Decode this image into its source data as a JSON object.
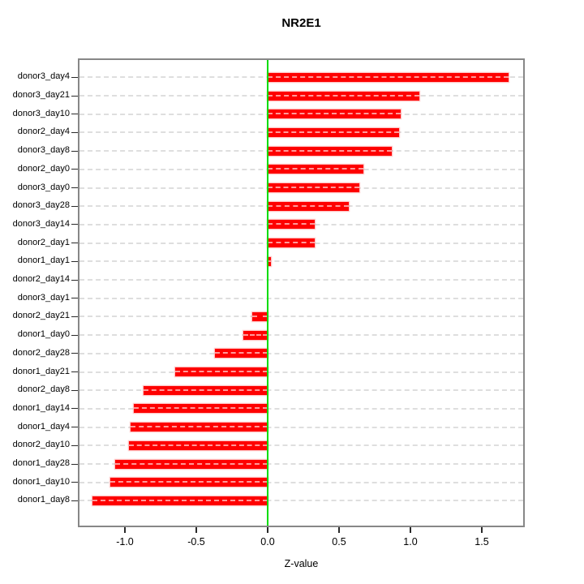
{
  "title": "NR2E1",
  "xlabel": "Z-value",
  "chart_data": {
    "type": "bar",
    "orientation": "horizontal",
    "title": "NR2E1",
    "xlabel": "Z-value",
    "ylabel": "",
    "xlim": [
      -1.32,
      1.79
    ],
    "xticks": [
      -1.0,
      -0.5,
      0.0,
      0.5,
      1.0,
      1.5
    ],
    "grid": "horizontal-dashed-per-category",
    "legend": "none",
    "bar_color": "#fe0000",
    "zero_line_color": "#00dd00",
    "frame_color": "#878787",
    "categories": [
      "donor3_day4",
      "donor3_day21",
      "donor3_day10",
      "donor2_day4",
      "donor3_day8",
      "donor2_day0",
      "donor3_day0",
      "donor3_day28",
      "donor3_day14",
      "donor2_day1",
      "donor1_day1",
      "donor2_day14",
      "donor3_day1",
      "donor2_day21",
      "donor1_day0",
      "donor2_day28",
      "donor1_day21",
      "donor2_day8",
      "donor1_day14",
      "donor1_day4",
      "donor2_day10",
      "donor1_day28",
      "donor1_day10",
      "donor1_day8"
    ],
    "values": [
      1.69,
      1.06,
      0.93,
      0.92,
      0.87,
      0.67,
      0.64,
      0.57,
      0.33,
      0.33,
      0.02,
      0.0,
      0.0,
      -0.11,
      -0.17,
      -0.37,
      -0.65,
      -0.87,
      -0.94,
      -0.96,
      -0.97,
      -1.07,
      -1.1,
      -1.23
    ]
  }
}
